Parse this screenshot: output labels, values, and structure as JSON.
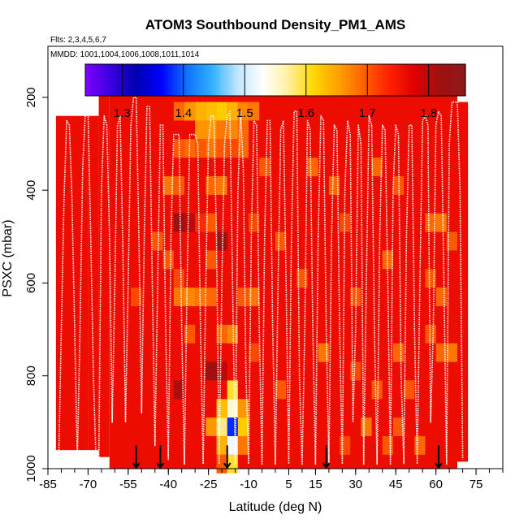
{
  "chart_data": {
    "type": "heatmap",
    "title": "ATOM3 Southbound Density_PM1_AMS",
    "subtitle_flights": "Flts: 2,3,4,5,6,7",
    "subtitle_dates": "MMDD: 1001,1004,1006,1008,1011,1014",
    "xlabel": "Latitude (deg N)",
    "ylabel": "PSXC (mbar)",
    "xlim": [
      -85,
      85
    ],
    "ylim": [
      1000,
      90
    ],
    "x_ticks": [
      -85,
      -70,
      -55,
      -40,
      -25,
      -10,
      5,
      15,
      30,
      45,
      60,
      75
    ],
    "x_minor_step": 5,
    "y_ticks": [
      200,
      400,
      600,
      800,
      1000
    ],
    "grid": false,
    "colorbar": {
      "position": "top",
      "min": 1.24,
      "max": 1.86,
      "tick_values": [
        1.3,
        1.4,
        1.5,
        1.6,
        1.7,
        1.8
      ],
      "tick_labels": [
        "1.3",
        "1.4",
        "1.5",
        "1.6",
        "1.7",
        "1.8"
      ],
      "colors": [
        "#7f00ff",
        "#3a00e0",
        "#0000b0",
        "#0000ff",
        "#1070ff",
        "#30b0ff",
        "#bfe6ff",
        "#ffffff",
        "#fff0a0",
        "#ffd700",
        "#ffa000",
        "#ff6000",
        "#ff2000",
        "#e00000",
        "#a01010",
        "#8b1a1a"
      ]
    },
    "background_value": 1.76,
    "lat_bins": [
      -82,
      -78,
      -74,
      -70,
      -66,
      -62,
      -58,
      -54,
      -50,
      -46,
      -42,
      -38,
      -34,
      -30,
      -26,
      -22,
      -18,
      -14,
      -10,
      -6,
      -2,
      2,
      6,
      10,
      14,
      18,
      22,
      26,
      30,
      34,
      38,
      42,
      46,
      50,
      54,
      58,
      62,
      66,
      70,
      74
    ],
    "lat_bin_width": 4,
    "pressure_bins": [
      190,
      230,
      270,
      310,
      350,
      390,
      430,
      470,
      510,
      550,
      590,
      630,
      670,
      710,
      750,
      790,
      830,
      870,
      910,
      950,
      990
    ],
    "pressure_bin_height": 40,
    "highlight_cells": [
      {
        "lat": -32,
        "p": 230,
        "v": 1.66
      },
      {
        "lat": -28,
        "p": 230,
        "v": 1.64
      },
      {
        "lat": -24,
        "p": 230,
        "v": 1.63
      },
      {
        "lat": -20,
        "p": 230,
        "v": 1.62
      },
      {
        "lat": -16,
        "p": 230,
        "v": 1.64
      },
      {
        "lat": -12,
        "p": 230,
        "v": 1.67
      },
      {
        "lat": -8,
        "p": 230,
        "v": 1.68
      },
      {
        "lat": -36,
        "p": 230,
        "v": 1.69
      },
      {
        "lat": -28,
        "p": 270,
        "v": 1.66
      },
      {
        "lat": -24,
        "p": 270,
        "v": 1.66
      },
      {
        "lat": -20,
        "p": 270,
        "v": 1.68
      },
      {
        "lat": -16,
        "p": 270,
        "v": 1.67
      },
      {
        "lat": -12,
        "p": 270,
        "v": 1.69
      },
      {
        "lat": -36,
        "p": 310,
        "v": 1.7
      },
      {
        "lat": -32,
        "p": 310,
        "v": 1.69
      },
      {
        "lat": -28,
        "p": 310,
        "v": 1.7
      },
      {
        "lat": -24,
        "p": 310,
        "v": 1.68
      },
      {
        "lat": -20,
        "p": 310,
        "v": 1.7
      },
      {
        "lat": -16,
        "p": 310,
        "v": 1.71
      },
      {
        "lat": -12,
        "p": 310,
        "v": 1.69
      },
      {
        "lat": -40,
        "p": 390,
        "v": 1.68
      },
      {
        "lat": -36,
        "p": 390,
        "v": 1.7
      },
      {
        "lat": -24,
        "p": 390,
        "v": 1.69
      },
      {
        "lat": -20,
        "p": 390,
        "v": 1.68
      },
      {
        "lat": -4,
        "p": 350,
        "v": 1.7
      },
      {
        "lat": 14,
        "p": 350,
        "v": 1.69
      },
      {
        "lat": 22,
        "p": 390,
        "v": 1.69
      },
      {
        "lat": 38,
        "p": 350,
        "v": 1.69
      },
      {
        "lat": 46,
        "p": 390,
        "v": 1.7
      },
      {
        "lat": -36,
        "p": 470,
        "v": 1.83
      },
      {
        "lat": -32,
        "p": 470,
        "v": 1.8
      },
      {
        "lat": -28,
        "p": 470,
        "v": 1.73
      },
      {
        "lat": -24,
        "p": 470,
        "v": 1.7
      },
      {
        "lat": -20,
        "p": 510,
        "v": 1.82
      },
      {
        "lat": -44,
        "p": 510,
        "v": 1.7
      },
      {
        "lat": -8,
        "p": 470,
        "v": 1.71
      },
      {
        "lat": 2,
        "p": 510,
        "v": 1.7
      },
      {
        "lat": 26,
        "p": 470,
        "v": 1.71
      },
      {
        "lat": 58,
        "p": 470,
        "v": 1.69
      },
      {
        "lat": 62,
        "p": 470,
        "v": 1.68
      },
      {
        "lat": 66,
        "p": 510,
        "v": 1.7
      },
      {
        "lat": -40,
        "p": 550,
        "v": 1.7
      },
      {
        "lat": -36,
        "p": 590,
        "v": 1.71
      },
      {
        "lat": -24,
        "p": 550,
        "v": 1.7
      },
      {
        "lat": 10,
        "p": 590,
        "v": 1.7
      },
      {
        "lat": 42,
        "p": 550,
        "v": 1.69
      },
      {
        "lat": 58,
        "p": 590,
        "v": 1.7
      },
      {
        "lat": -36,
        "p": 630,
        "v": 1.68
      },
      {
        "lat": -32,
        "p": 630,
        "v": 1.67
      },
      {
        "lat": -28,
        "p": 630,
        "v": 1.68
      },
      {
        "lat": -24,
        "p": 630,
        "v": 1.69
      },
      {
        "lat": -12,
        "p": 630,
        "v": 1.7
      },
      {
        "lat": -8,
        "p": 630,
        "v": 1.68
      },
      {
        "lat": -52,
        "p": 630,
        "v": 1.71
      },
      {
        "lat": 30,
        "p": 630,
        "v": 1.7
      },
      {
        "lat": 62,
        "p": 630,
        "v": 1.69
      },
      {
        "lat": -32,
        "p": 710,
        "v": 1.7
      },
      {
        "lat": -20,
        "p": 710,
        "v": 1.69
      },
      {
        "lat": -16,
        "p": 710,
        "v": 1.67
      },
      {
        "lat": -8,
        "p": 750,
        "v": 1.71
      },
      {
        "lat": 18,
        "p": 750,
        "v": 1.68
      },
      {
        "lat": 46,
        "p": 750,
        "v": 1.69
      },
      {
        "lat": 58,
        "p": 710,
        "v": 1.7
      },
      {
        "lat": 62,
        "p": 750,
        "v": 1.69
      },
      {
        "lat": 66,
        "p": 750,
        "v": 1.68
      },
      {
        "lat": -24,
        "p": 790,
        "v": 1.82
      },
      {
        "lat": -20,
        "p": 790,
        "v": 1.8
      },
      {
        "lat": -36,
        "p": 830,
        "v": 1.81
      },
      {
        "lat": -16,
        "p": 830,
        "v": 1.6
      },
      {
        "lat": -16,
        "p": 870,
        "v": 1.55
      },
      {
        "lat": -12,
        "p": 870,
        "v": 1.66
      },
      {
        "lat": -20,
        "p": 870,
        "v": 1.63
      },
      {
        "lat": 2,
        "p": 830,
        "v": 1.7
      },
      {
        "lat": 30,
        "p": 790,
        "v": 1.71
      },
      {
        "lat": 38,
        "p": 830,
        "v": 1.7
      },
      {
        "lat": 50,
        "p": 830,
        "v": 1.7
      },
      {
        "lat": -16,
        "p": 910,
        "v": 1.38
      },
      {
        "lat": -20,
        "p": 910,
        "v": 1.58
      },
      {
        "lat": -12,
        "p": 910,
        "v": 1.62
      },
      {
        "lat": -24,
        "p": 910,
        "v": 1.66
      },
      {
        "lat": 34,
        "p": 910,
        "v": 1.68
      },
      {
        "lat": 46,
        "p": 910,
        "v": 1.7
      },
      {
        "lat": -16,
        "p": 950,
        "v": 1.52
      },
      {
        "lat": -20,
        "p": 950,
        "v": 1.64
      },
      {
        "lat": -12,
        "p": 950,
        "v": 1.68
      },
      {
        "lat": 26,
        "p": 950,
        "v": 1.71
      },
      {
        "lat": 42,
        "p": 950,
        "v": 1.7
      },
      {
        "lat": 54,
        "p": 950,
        "v": 1.69
      },
      {
        "lat": -16,
        "p": 990,
        "v": 1.6
      },
      {
        "lat": -20,
        "p": 990,
        "v": 1.7
      }
    ],
    "data_coverage": [
      {
        "lat_min": -82,
        "lat_max": -70,
        "p_top": 240,
        "p_bottom": 960
      },
      {
        "lat_min": -70,
        "lat_max": -66,
        "p_top": 240,
        "p_bottom": 960
      },
      {
        "lat_min": -66,
        "lat_max": -62,
        "p_top": 170,
        "p_bottom": 975
      },
      {
        "lat_min": -62,
        "lat_max": 68,
        "p_top": 170,
        "p_bottom": 1000
      },
      {
        "lat_min": 68,
        "lat_max": 72,
        "p_top": 210,
        "p_bottom": 985
      }
    ],
    "profile_lines": [
      {
        "name": "flight-track-a",
        "lat": [
          -81,
          -80,
          -79,
          -78,
          -77,
          -76,
          -75,
          -74,
          -73,
          -72,
          -71,
          -70,
          -69,
          -68,
          -67
        ],
        "p": [
          990,
          700,
          420,
          250,
          260,
          420,
          700,
          980,
          700,
          350,
          230,
          230,
          500,
          800,
          990
        ]
      },
      {
        "name": "flight-track-b",
        "lat": [
          -66,
          -65,
          -64,
          -63,
          -62,
          -61,
          -60,
          -59,
          -58,
          -57,
          -56,
          -55,
          -54,
          -53,
          -52,
          -51,
          -50,
          -49,
          -48,
          -47,
          -46
        ],
        "p": [
          990,
          400,
          240,
          260,
          500,
          900,
          600,
          260,
          240,
          520,
          900,
          600,
          260,
          200,
          200,
          500,
          880,
          500,
          220,
          220,
          600
        ]
      },
      {
        "name": "flight-track-c",
        "lat": [
          -46,
          -45,
          -44,
          -43,
          -42,
          -41,
          -40,
          -39,
          -38,
          -37,
          -36,
          -35,
          -34,
          -33,
          -32,
          -31,
          -30,
          -29,
          -28,
          -27,
          -26
        ],
        "p": [
          600,
          950,
          600,
          260,
          260,
          700,
          980,
          500,
          280,
          280,
          280,
          700,
          990,
          600,
          280,
          280,
          280,
          300,
          700,
          990,
          600
        ]
      },
      {
        "name": "flight-track-d",
        "lat": [
          -26,
          -25,
          -24,
          -23,
          -22,
          -21,
          -20,
          -19,
          -18,
          -17,
          -16,
          -15,
          -14,
          -13,
          -12,
          -11,
          -10,
          -9,
          -8,
          -7,
          -6
        ],
        "p": [
          600,
          300,
          240,
          240,
          500,
          990,
          600,
          300,
          240,
          230,
          600,
          990,
          400,
          230,
          350,
          800,
          990,
          500,
          250,
          260,
          700
        ]
      },
      {
        "name": "flight-track-e",
        "lat": [
          -6,
          -5,
          -4,
          -3,
          -2,
          -1,
          0,
          1,
          2,
          3,
          4,
          5,
          6,
          7,
          8,
          9,
          10,
          11,
          12,
          13,
          14,
          15,
          16
        ],
        "p": [
          700,
          990,
          500,
          250,
          250,
          700,
          990,
          600,
          270,
          250,
          600,
          990,
          500,
          230,
          230,
          800,
          990,
          700,
          250,
          270,
          700,
          990,
          500
        ]
      },
      {
        "name": "flight-track-f",
        "lat": [
          16,
          17,
          18,
          19,
          20,
          21,
          22,
          23,
          24,
          25,
          26,
          27,
          28,
          29,
          30,
          31,
          32,
          33,
          34,
          35,
          36
        ],
        "p": [
          500,
          240,
          250,
          700,
          990,
          500,
          260,
          270,
          700,
          990,
          400,
          250,
          280,
          900,
          700,
          260,
          300,
          990,
          600,
          240,
          260
        ]
      },
      {
        "name": "flight-track-g",
        "lat": [
          36,
          37,
          38,
          39,
          40,
          41,
          42,
          43,
          44,
          45,
          46,
          47,
          48,
          49,
          50,
          51,
          52,
          53,
          54,
          55,
          56,
          57,
          58,
          59,
          60,
          61,
          62,
          63,
          64,
          65,
          66,
          67,
          68,
          69,
          70
        ],
        "p": [
          260,
          700,
          990,
          500,
          260,
          270,
          600,
          990,
          400,
          260,
          280,
          800,
          990,
          500,
          260,
          260,
          700,
          990,
          600,
          250,
          240,
          260,
          900,
          700,
          260,
          230,
          240,
          600,
          990,
          300,
          210,
          210,
          210,
          400,
          980
        ]
      }
    ],
    "arrows": {
      "lat": [
        -52,
        -43,
        -18,
        19,
        61
      ],
      "p_top": 950,
      "p_bottom": 1000,
      "color": "#000000"
    }
  }
}
